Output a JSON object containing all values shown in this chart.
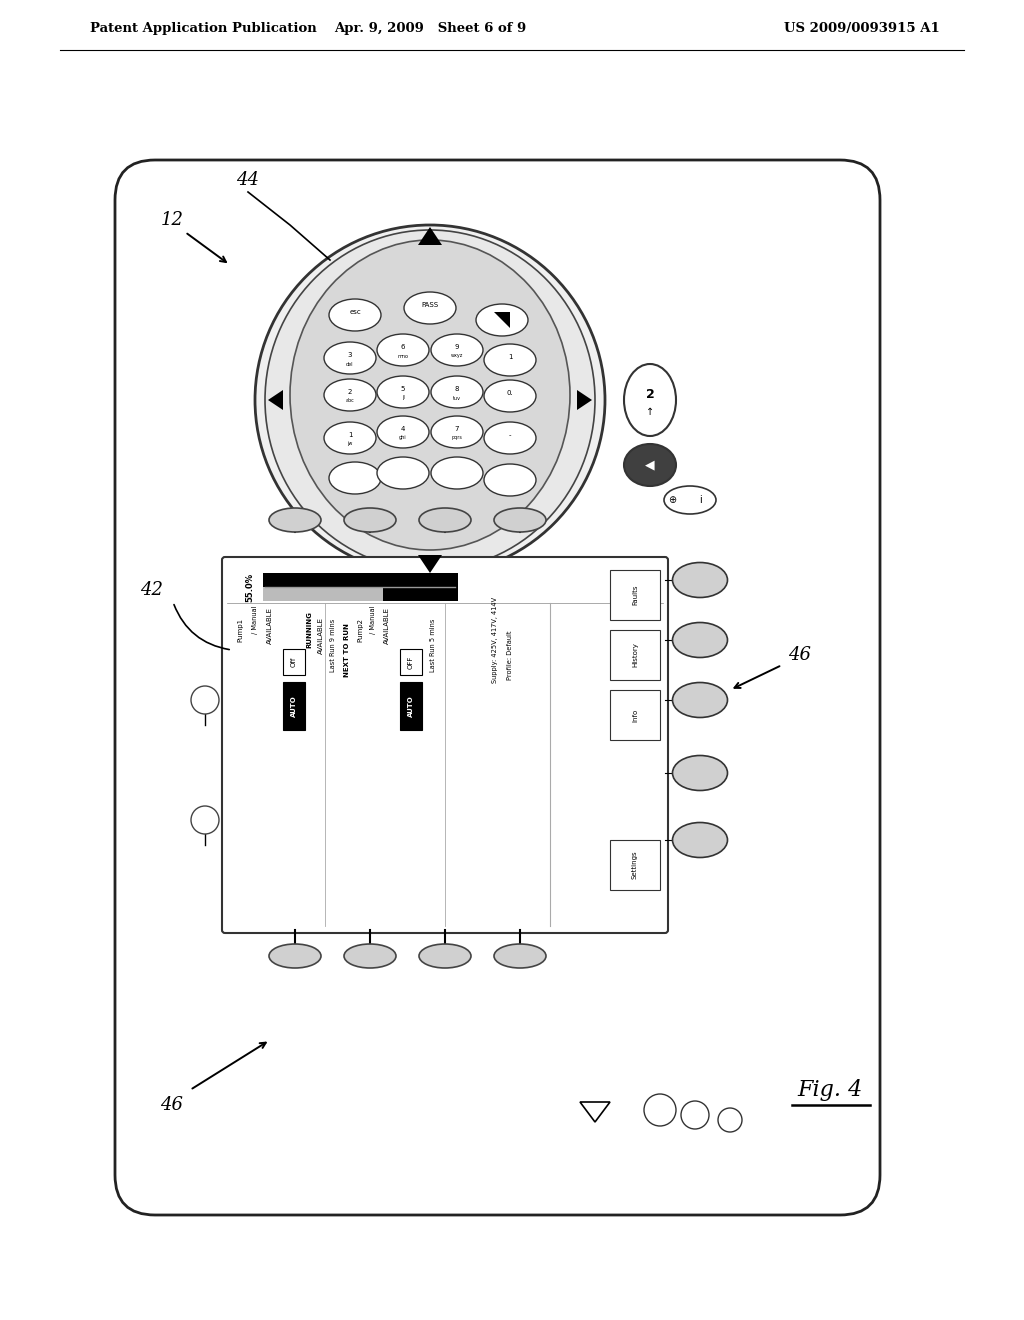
{
  "bg_color": "#ffffff",
  "header_left": "Patent Application Publication",
  "header_mid": "Apr. 9, 2009   Sheet 6 of 9",
  "header_right": "US 2009/0093915 A1",
  "fig_label": "Fig. 4"
}
